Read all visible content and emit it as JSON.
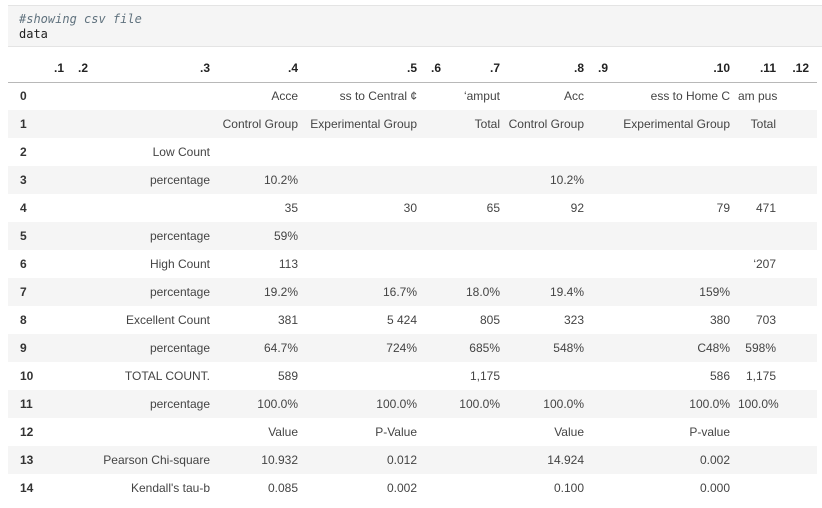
{
  "code_cell": {
    "comment": "#showing csv file",
    "code": "data"
  },
  "table": {
    "columns": [
      "",
      ".1",
      ".2",
      ".3",
      ".4",
      ".5",
      ".6",
      ".7",
      ".8",
      ".9",
      ".10",
      ".11",
      ".12"
    ],
    "rows": [
      {
        "index": "0",
        "cells": [
          "",
          "",
          "",
          "Acce",
          "ss to Central ¢",
          "",
          "‘amput",
          "Acc",
          "",
          "ess to Home C",
          "am pus",
          ""
        ]
      },
      {
        "index": "1",
        "cells": [
          "",
          "",
          "",
          "Control Group",
          "Experimental Group",
          "",
          "Total",
          "Control Group",
          "",
          "Experimental Group",
          "Total",
          ""
        ]
      },
      {
        "index": "2",
        "cells": [
          "",
          "",
          "Low Count",
          "",
          "",
          "",
          "",
          "",
          "",
          "",
          "",
          ""
        ]
      },
      {
        "index": "3",
        "cells": [
          "",
          "",
          "percentage",
          "10.2%",
          "",
          "",
          "",
          "10.2%",
          "",
          "",
          "",
          ""
        ]
      },
      {
        "index": "4",
        "cells": [
          "",
          "",
          "",
          "35",
          "30",
          "",
          "65",
          "92",
          "",
          "79",
          "471",
          ""
        ]
      },
      {
        "index": "5",
        "cells": [
          "",
          "",
          "percentage",
          "59%",
          "",
          "",
          "",
          "",
          "",
          "",
          "",
          ""
        ]
      },
      {
        "index": "6",
        "cells": [
          "",
          "",
          "High Count",
          "113",
          "",
          "",
          "",
          "",
          "",
          "",
          "‘207",
          ""
        ]
      },
      {
        "index": "7",
        "cells": [
          "",
          "",
          "percentage",
          "19.2%",
          "16.7%",
          "",
          "18.0%",
          "19.4%",
          "",
          "159%",
          "",
          ""
        ]
      },
      {
        "index": "8",
        "cells": [
          "",
          "",
          "Excellent Count",
          "381",
          "5 424",
          "",
          "805",
          "323",
          "",
          "380",
          "703",
          ""
        ]
      },
      {
        "index": "9",
        "cells": [
          "",
          "",
          "percentage",
          "64.7%",
          "724%",
          "",
          "685%",
          "548%",
          "",
          "C48%",
          "598%",
          ""
        ]
      },
      {
        "index": "10",
        "cells": [
          "",
          "",
          "TOTAL COUNT.",
          "589",
          "",
          "",
          "1,175",
          "",
          "",
          "586",
          "1,175",
          ""
        ]
      },
      {
        "index": "11",
        "cells": [
          "",
          "",
          "percentage",
          "100.0%",
          "100.0%",
          "",
          "100.0%",
          "100.0%",
          "",
          "100.0%",
          "100.0%",
          ""
        ]
      },
      {
        "index": "12",
        "cells": [
          "",
          "",
          "",
          "Value",
          "P-Value",
          "",
          "",
          "Value",
          "",
          "P-value",
          "",
          ""
        ]
      },
      {
        "index": "13",
        "cells": [
          "",
          "",
          "Pearson Chi-square",
          "10.932",
          "0.012",
          "",
          "",
          "14.924",
          "",
          "0.002",
          "",
          ""
        ]
      },
      {
        "index": "14",
        "cells": [
          "",
          "",
          "Kendall's tau-b",
          "0.085",
          "0.002",
          "",
          "",
          "0.100",
          "",
          "0.000",
          "",
          ""
        ]
      }
    ]
  }
}
